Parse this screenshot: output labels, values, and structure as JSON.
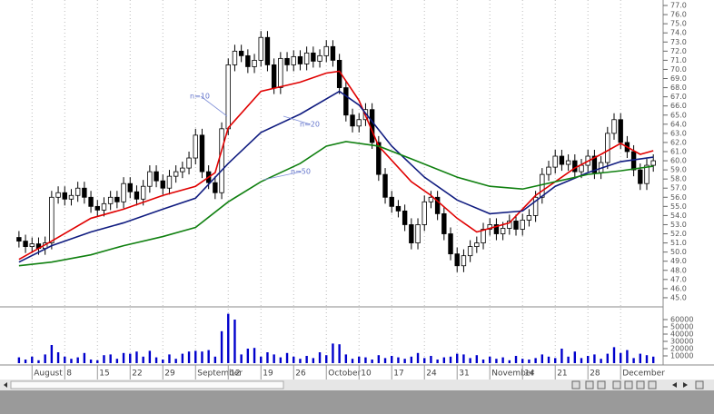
{
  "chart_data": [
    {
      "type": "candlestick",
      "open": [
        51.6,
        51.2,
        50.6,
        50.9,
        50.4,
        51.0,
        56.0,
        56.5,
        55.8,
        56.2,
        57.0,
        56.0,
        55.0,
        54.6,
        55.3,
        56.0,
        55.5,
        57.5,
        56.6,
        55.8,
        57.2,
        58.8,
        57.8,
        57.0,
        58.3,
        58.8,
        59.2,
        60.3,
        62.8,
        58.8,
        57.6,
        56.5,
        63.5,
        70.5,
        72.0,
        71.5,
        70.3,
        71.0,
        73.5,
        70.5,
        68.0,
        71.2,
        70.5,
        71.4,
        70.6,
        71.8,
        70.9,
        71.5,
        72.5,
        71.0,
        68.0,
        65.0,
        63.8,
        64.5,
        65.6,
        62.0,
        58.5,
        56.0,
        55.0,
        54.5,
        53.0,
        51.0,
        53.0,
        55.5,
        56.0,
        54.2,
        52.0,
        49.8,
        48.5,
        49.6,
        50.6,
        51.0,
        52.5,
        53.0,
        52.0,
        52.6,
        53.4,
        52.5,
        53.5,
        54.0,
        56.0,
        58.5,
        59.3,
        60.5,
        59.6,
        60.0,
        58.8,
        59.5,
        60.5,
        58.7,
        59.8,
        63.0,
        64.5,
        62.0,
        61.0,
        59.0,
        57.5,
        59.5
      ],
      "high": [
        52.3,
        51.9,
        51.6,
        51.6,
        51.7,
        56.7,
        57.2,
        57.2,
        56.9,
        57.7,
        57.7,
        56.7,
        55.7,
        56.0,
        56.7,
        56.7,
        58.2,
        58.2,
        57.3,
        57.9,
        59.5,
        59.5,
        58.5,
        59.0,
        59.5,
        59.9,
        61.0,
        63.5,
        63.5,
        59.5,
        58.3,
        64.2,
        71.2,
        72.7,
        72.7,
        72.2,
        71.7,
        74.2,
        74.2,
        71.2,
        71.9,
        71.9,
        72.1,
        72.1,
        72.5,
        72.5,
        72.2,
        73.2,
        73.2,
        71.7,
        68.7,
        65.7,
        65.2,
        66.3,
        66.3,
        62.7,
        59.2,
        56.7,
        55.7,
        55.2,
        53.7,
        53.7,
        56.2,
        56.7,
        56.7,
        54.9,
        52.7,
        50.5,
        50.3,
        51.3,
        51.7,
        53.2,
        53.7,
        53.7,
        53.3,
        54.1,
        54.1,
        54.2,
        54.7,
        56.7,
        59.2,
        60.0,
        61.2,
        61.2,
        60.7,
        60.7,
        60.2,
        61.2,
        61.2,
        60.5,
        63.7,
        65.2,
        65.2,
        62.7,
        61.7,
        59.7,
        60.2,
        60.7
      ],
      "low": [
        50.5,
        49.9,
        49.9,
        49.7,
        49.7,
        50.3,
        55.3,
        55.1,
        55.1,
        55.5,
        55.3,
        54.3,
        53.9,
        53.9,
        54.6,
        54.8,
        54.8,
        55.9,
        55.1,
        55.1,
        56.5,
        57.1,
        56.3,
        56.3,
        57.6,
        58.1,
        58.5,
        59.6,
        58.1,
        56.9,
        55.8,
        55.8,
        62.8,
        69.8,
        70.8,
        69.6,
        69.6,
        70.3,
        69.8,
        67.3,
        67.3,
        69.8,
        69.8,
        69.9,
        69.9,
        70.2,
        70.2,
        70.8,
        70.3,
        67.3,
        64.3,
        63.1,
        63.1,
        63.8,
        61.3,
        57.8,
        55.3,
        54.3,
        53.8,
        52.3,
        50.3,
        50.3,
        52.3,
        54.8,
        53.5,
        51.3,
        49.1,
        47.8,
        47.8,
        48.9,
        49.9,
        50.3,
        51.8,
        51.3,
        51.3,
        51.9,
        51.8,
        51.8,
        52.8,
        53.3,
        55.3,
        57.8,
        58.6,
        58.9,
        58.9,
        58.1,
        58.1,
        58.8,
        58.0,
        58.0,
        59.1,
        62.3,
        61.3,
        60.3,
        58.3,
        56.8,
        56.8,
        58.8
      ],
      "close": [
        51.2,
        50.6,
        50.9,
        50.4,
        51.0,
        56.0,
        56.5,
        55.8,
        56.2,
        57.0,
        56.0,
        55.0,
        54.6,
        55.3,
        56.0,
        55.5,
        57.5,
        56.6,
        55.8,
        57.2,
        58.8,
        57.8,
        57.0,
        58.3,
        58.8,
        59.2,
        60.3,
        62.8,
        58.8,
        57.6,
        56.5,
        63.5,
        70.5,
        72.0,
        71.5,
        70.3,
        71.0,
        73.5,
        70.5,
        68.0,
        71.2,
        70.5,
        71.4,
        70.6,
        71.8,
        70.9,
        71.5,
        72.5,
        71.0,
        68.0,
        65.0,
        63.8,
        64.5,
        65.6,
        62.0,
        58.5,
        56.0,
        55.0,
        54.5,
        53.0,
        51.0,
        53.0,
        55.5,
        56.0,
        54.2,
        52.0,
        49.8,
        48.5,
        49.6,
        50.6,
        51.0,
        52.5,
        53.0,
        52.0,
        52.6,
        53.4,
        52.5,
        53.5,
        54.0,
        56.0,
        58.5,
        59.3,
        60.5,
        59.6,
        60.0,
        58.8,
        59.5,
        60.5,
        58.7,
        59.8,
        63.0,
        64.5,
        62.0,
        61.0,
        59.0,
        57.5,
        59.5,
        60.0
      ],
      "series": [
        {
          "name": "n=10",
          "color": "#e00000",
          "x": [
            0,
            5,
            11,
            16,
            22,
            27,
            30,
            32,
            37,
            43,
            47,
            49,
            52,
            55,
            60,
            63,
            67,
            70,
            75,
            79,
            85,
            89,
            92,
            95,
            97
          ],
          "values": [
            49.2,
            51.2,
            53.7,
            54.7,
            56.2,
            57.2,
            58.7,
            63.6,
            67.6,
            68.6,
            69.6,
            69.8,
            66.6,
            61.6,
            57.7,
            56.2,
            53.7,
            52.2,
            53.2,
            56.2,
            59.2,
            60.7,
            61.9,
            60.7,
            61.1
          ]
        },
        {
          "name": "n=20",
          "color": "#101c80",
          "x": [
            0,
            5,
            11,
            16,
            22,
            27,
            32,
            37,
            43,
            49,
            52,
            57,
            62,
            67,
            72,
            77,
            82,
            87,
            92,
            97
          ],
          "values": [
            48.9,
            50.7,
            52.2,
            53.2,
            54.7,
            55.9,
            59.7,
            63.1,
            65.1,
            67.6,
            66.1,
            61.6,
            58.2,
            55.7,
            54.2,
            54.5,
            57.2,
            58.7,
            59.9,
            60.4
          ]
        },
        {
          "name": "n=50",
          "color": "#108010",
          "x": [
            0,
            5,
            11,
            16,
            22,
            27,
            32,
            37,
            43,
            47,
            50,
            55,
            60,
            67,
            72,
            77,
            82,
            87,
            92,
            97
          ],
          "values": [
            48.5,
            48.9,
            49.7,
            50.7,
            51.7,
            52.7,
            55.5,
            57.7,
            59.7,
            61.6,
            62.1,
            61.6,
            60.2,
            58.2,
            57.2,
            56.9,
            57.7,
            58.5,
            58.9,
            59.4
          ]
        }
      ],
      "xlim": [
        -2.9,
        98.5
      ],
      "xticks": [
        {
          "value": 2,
          "label": "August"
        },
        {
          "value": 7,
          "label": "8"
        },
        {
          "value": 12,
          "label": "15"
        },
        {
          "value": 17,
          "label": "22"
        },
        {
          "value": 22,
          "label": "29"
        },
        {
          "value": 27,
          "label": "September"
        },
        {
          "value": 32,
          "label": "12"
        },
        {
          "value": 37,
          "label": "19"
        },
        {
          "value": 42,
          "label": "26"
        },
        {
          "value": 47,
          "label": "October"
        },
        {
          "value": 52,
          "label": "10"
        },
        {
          "value": 57,
          "label": "17"
        },
        {
          "value": 62,
          "label": "24"
        },
        {
          "value": 67,
          "label": "31"
        },
        {
          "value": 72,
          "label": "November"
        },
        {
          "value": 77,
          "label": "14"
        },
        {
          "value": 82,
          "label": "21"
        },
        {
          "value": 87,
          "label": "28"
        },
        {
          "value": 92,
          "label": "December"
        }
      ],
      "ylim": [
        44,
        77.6
      ],
      "yticks": [
        {
          "value": 45,
          "label": "45.0"
        },
        {
          "value": 46,
          "label": "46.0"
        },
        {
          "value": 47,
          "label": "47.0"
        },
        {
          "value": 48,
          "label": "48.0"
        },
        {
          "value": 49,
          "label": "49.0"
        },
        {
          "value": 50,
          "label": "50.0"
        },
        {
          "value": 51,
          "label": "51.0"
        },
        {
          "value": 52,
          "label": "52.0"
        },
        {
          "value": 53,
          "label": "53.0"
        },
        {
          "value": 54,
          "label": "54.0"
        },
        {
          "value": 55,
          "label": "55.0"
        },
        {
          "value": 56,
          "label": "56.0"
        },
        {
          "value": 57,
          "label": "57.0"
        },
        {
          "value": 58,
          "label": "58.0"
        },
        {
          "value": 59,
          "label": "59.0"
        },
        {
          "value": 60,
          "label": "60.0"
        },
        {
          "value": 61,
          "label": "61.0"
        },
        {
          "value": 62,
          "label": "62.0"
        },
        {
          "value": 63,
          "label": "63.0"
        },
        {
          "value": 64,
          "label": "64.0"
        },
        {
          "value": 65,
          "label": "65.0"
        },
        {
          "value": 66,
          "label": "66.0"
        },
        {
          "value": 67,
          "label": "67.0"
        },
        {
          "value": 68,
          "label": "68.0"
        },
        {
          "value": 69,
          "label": "69.0"
        },
        {
          "value": 70,
          "label": "70.0"
        },
        {
          "value": 71,
          "label": "71.0"
        },
        {
          "value": 72,
          "label": "72.0"
        },
        {
          "value": 73,
          "label": "73.0"
        },
        {
          "value": 74,
          "label": "74.0"
        },
        {
          "value": 75,
          "label": "75.0"
        },
        {
          "value": 76,
          "label": "76.0"
        },
        {
          "value": 77,
          "label": "77.0"
        }
      ],
      "grid": true
    },
    {
      "type": "bar",
      "color": "#0000cc",
      "values": [
        8000,
        5000,
        9000,
        4000,
        12000,
        25000,
        15000,
        9000,
        6000,
        8000,
        14000,
        5000,
        4000,
        11000,
        12000,
        6000,
        14000,
        13000,
        16000,
        9000,
        17000,
        8000,
        5000,
        12000,
        6000,
        13000,
        16000,
        17000,
        16000,
        18000,
        9000,
        44000,
        68000,
        60000,
        12000,
        20000,
        21000,
        9000,
        15000,
        12000,
        8000,
        14000,
        9000,
        6000,
        10000,
        7000,
        15000,
        11000,
        27000,
        26000,
        12000,
        6000,
        9000,
        8000,
        5000,
        11000,
        7000,
        10000,
        8000,
        6000,
        9000,
        14000,
        7000,
        10000,
        5000,
        8000,
        9000,
        13000,
        12000,
        7000,
        11000,
        5000,
        9000,
        6000,
        8000,
        4000,
        10000,
        6000,
        5000,
        7000,
        12000,
        9000,
        7000,
        20000,
        9000,
        16000,
        7000,
        10000,
        12000,
        6000,
        13000,
        22000,
        14000,
        18000,
        7000,
        13000,
        11000,
        9000
      ],
      "ylim": [
        0,
        75000
      ],
      "yticks": [
        10000,
        20000,
        30000,
        40000,
        50000,
        60000
      ]
    }
  ]
}
